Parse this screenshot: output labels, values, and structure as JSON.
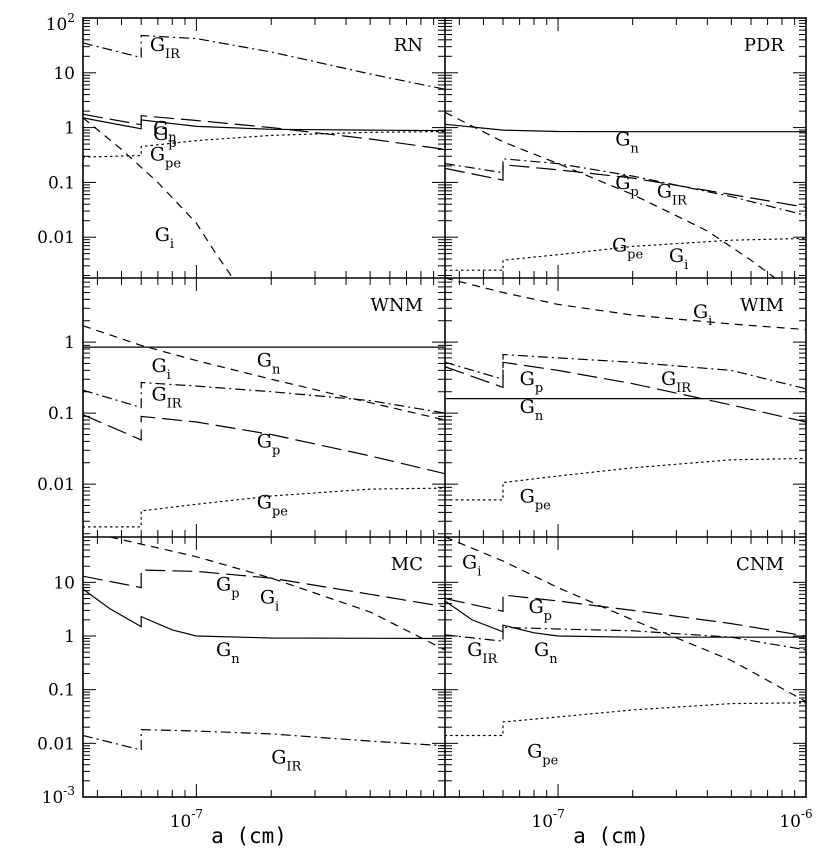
{
  "chart_data": {
    "type": "line",
    "xlabel": "a (cm)",
    "xscale": "log",
    "yscale": "log",
    "xlim": [
      3.5e-08,
      1e-06
    ],
    "ylim": [
      0.001,
      100
    ],
    "xtick_labels": [
      {
        "value": 1e-07,
        "mant": "10",
        "exp": "-7"
      },
      {
        "value": 1e-06,
        "mant": "10",
        "exp": "-6"
      }
    ],
    "ytick_labels": [
      {
        "value": 100,
        "mant": "10",
        "exp": "2"
      },
      {
        "value": 10,
        "text": "10"
      },
      {
        "value": 1,
        "text": "1"
      },
      {
        "value": 0.1,
        "text": "0.1"
      },
      {
        "value": 0.01,
        "text": "0.01"
      },
      {
        "value": 0.001,
        "mant": "10",
        "exp": "-3"
      }
    ],
    "line_styles": {
      "n": "solid",
      "p": "long-dash",
      "i": "short-dash",
      "pe": "dotted",
      "IR": "dash-dot"
    },
    "panels": [
      {
        "name": "RN",
        "col": 0,
        "row": 0,
        "ylim": [
          0.0018,
          100
        ],
        "series": [
          {
            "key": "IR",
            "x": [
              3.5e-08,
              6e-08,
              6e-08,
              1e-07,
              2e-07,
              5e-07,
              1e-06
            ],
            "y": [
              35,
              19,
              48,
              42,
              24,
              9.5,
              5
            ]
          },
          {
            "key": "p",
            "x": [
              3.5e-08,
              6e-08,
              6e-08,
              1e-07,
              2e-07,
              5e-07,
              1e-06
            ],
            "y": [
              1.75,
              1.13,
              1.65,
              1.35,
              1.0,
              0.62,
              0.4
            ]
          },
          {
            "key": "n",
            "x": [
              3.5e-08,
              6e-08,
              6e-08,
              1e-07,
              2e-07,
              5e-07,
              1e-06
            ],
            "y": [
              1.5,
              0.95,
              1.38,
              1.05,
              0.93,
              0.9,
              0.88
            ]
          },
          {
            "key": "pe",
            "x": [
              3.5e-08,
              6e-08,
              6e-08,
              1e-07,
              2e-07,
              5e-07,
              1e-06
            ],
            "y": [
              0.29,
              0.31,
              0.45,
              0.58,
              0.72,
              0.82,
              0.85
            ]
          },
          {
            "key": "i",
            "x": [
              3.5e-08,
              5e-08,
              7e-08,
              1e-07,
              1.2e-07,
              1.4e-07
            ],
            "y": [
              1.5,
              0.4,
              0.1,
              0.018,
              0.005,
              0.0018
            ]
          }
        ],
        "labels": [
          {
            "main": "G",
            "sub": "IR",
            "x": 6.5e-08,
            "y": 25
          },
          {
            "main": "G",
            "sub": "n",
            "x": 6.7e-08,
            "y": 0.75
          },
          {
            "main": "G",
            "sub": "p",
            "x": 6.7e-08,
            "y": 0.6
          },
          {
            "main": "G",
            "sub": "pe",
            "x": 6.5e-08,
            "y": 0.25
          },
          {
            "main": "G",
            "sub": "i",
            "x": 6.8e-08,
            "y": 0.0085
          }
        ]
      },
      {
        "name": "PDR",
        "col": 1,
        "row": 0,
        "ylim": [
          0.0018,
          100
        ],
        "series": [
          {
            "key": "n",
            "x": [
              3.5e-08,
              6e-08,
              1e-07,
              2e-07,
              5e-07,
              1e-06
            ],
            "y": [
              1.15,
              0.9,
              0.85,
              0.84,
              0.84,
              0.84
            ]
          },
          {
            "key": "p",
            "x": [
              3.5e-08,
              6e-08,
              6e-08,
              1e-07,
              2e-07,
              5e-07,
              1e-06
            ],
            "y": [
              0.18,
              0.11,
              0.21,
              0.17,
              0.12,
              0.06,
              0.035
            ]
          },
          {
            "key": "IR",
            "x": [
              3.5e-08,
              6e-08,
              6e-08,
              1e-07,
              2e-07,
              5e-07,
              1e-06
            ],
            "y": [
              0.22,
              0.15,
              0.27,
              0.22,
              0.13,
              0.055,
              0.025
            ]
          },
          {
            "key": "i",
            "x": [
              3.5e-08,
              6e-08,
              1e-07,
              2e-07,
              4e-07,
              6e-07,
              7.5e-07
            ],
            "y": [
              1.9,
              0.55,
              0.22,
              0.06,
              0.013,
              0.0038,
              0.0018
            ]
          },
          {
            "key": "pe",
            "x": [
              3.5e-08,
              6e-08,
              6e-08,
              1e-07,
              2e-07,
              5e-07,
              1e-06
            ],
            "y": [
              0.0025,
              0.0025,
              0.0038,
              0.0048,
              0.0068,
              0.0088,
              0.0095
            ]
          }
        ],
        "labels": [
          {
            "main": "G",
            "sub": "n",
            "x": 1.7e-07,
            "y": 0.47
          },
          {
            "main": "G",
            "sub": "p",
            "x": 1.7e-07,
            "y": 0.075
          },
          {
            "main": "G",
            "sub": "IR",
            "x": 2.5e-07,
            "y": 0.053
          },
          {
            "main": "G",
            "sub": "pe",
            "x": 1.65e-07,
            "y": 0.0055
          },
          {
            "main": "G",
            "sub": "i",
            "x": 2.8e-07,
            "y": 0.0035
          }
        ]
      },
      {
        "name": "WNM",
        "col": 0,
        "row": 1,
        "ylim": [
          0.0018,
          8
        ],
        "series": [
          {
            "key": "n",
            "x": [
              3.5e-08,
              1e-07,
              1e-06
            ],
            "y": [
              0.85,
              0.85,
              0.85
            ]
          },
          {
            "key": "i",
            "x": [
              3.5e-08,
              6e-08,
              1e-07,
              2e-07,
              5e-07,
              1e-06
            ],
            "y": [
              1.7,
              0.9,
              0.55,
              0.3,
              0.14,
              0.08
            ]
          },
          {
            "key": "IR",
            "x": [
              3.5e-08,
              6e-08,
              6e-08,
              1e-07,
              2e-07,
              5e-07,
              1e-06
            ],
            "y": [
              0.21,
              0.12,
              0.27,
              0.24,
              0.2,
              0.15,
              0.1
            ]
          },
          {
            "key": "p",
            "x": [
              3.5e-08,
              6e-08,
              6e-08,
              1e-07,
              2e-07,
              5e-07,
              1e-06
            ],
            "y": [
              0.095,
              0.042,
              0.09,
              0.075,
              0.05,
              0.025,
              0.014
            ]
          },
          {
            "key": "pe",
            "x": [
              3.5e-08,
              6e-08,
              6e-08,
              1e-07,
              2e-07,
              5e-07,
              1e-06
            ],
            "y": [
              0.0025,
              0.0025,
              0.0042,
              0.0052,
              0.0068,
              0.0085,
              0.0088
            ]
          }
        ],
        "labels": [
          {
            "main": "G",
            "sub": "n",
            "x": 1.75e-07,
            "y": 0.45
          },
          {
            "main": "G",
            "sub": "i",
            "x": 6.6e-08,
            "y": 0.38
          },
          {
            "main": "G",
            "sub": "IR",
            "x": 6.6e-08,
            "y": 0.15
          },
          {
            "main": "G",
            "sub": "p",
            "x": 1.75e-07,
            "y": 0.033
          },
          {
            "main": "G",
            "sub": "pe",
            "x": 1.75e-07,
            "y": 0.0045
          }
        ]
      },
      {
        "name": "WIM",
        "col": 1,
        "row": 1,
        "ylim": [
          0.0018,
          8
        ],
        "series": [
          {
            "key": "i",
            "x": [
              3.5e-08,
              6e-08,
              1e-07,
              2e-07,
              5e-07,
              1e-06
            ],
            "y": [
              8,
              5,
              3.4,
              2.4,
              1.8,
              1.5
            ]
          },
          {
            "key": "IR",
            "x": [
              3.5e-08,
              6e-08,
              6e-08,
              1e-07,
              2e-07,
              5e-07,
              1e-06
            ],
            "y": [
              0.52,
              0.3,
              0.67,
              0.6,
              0.52,
              0.4,
              0.22
            ]
          },
          {
            "key": "p",
            "x": [
              3.5e-08,
              6e-08,
              6e-08,
              1e-07,
              2e-07,
              5e-07,
              1e-06
            ],
            "y": [
              0.45,
              0.23,
              0.52,
              0.4,
              0.26,
              0.13,
              0.075
            ]
          },
          {
            "key": "n",
            "x": [
              3.5e-08,
              1e-07,
              1e-06
            ],
            "y": [
              0.16,
              0.16,
              0.16
            ]
          },
          {
            "key": "pe",
            "x": [
              3.5e-08,
              6e-08,
              6e-08,
              1e-07,
              2e-07,
              5e-07,
              1e-06
            ],
            "y": [
              0.006,
              0.006,
              0.0105,
              0.013,
              0.017,
              0.022,
              0.023
            ]
          }
        ],
        "labels": [
          {
            "main": "G",
            "sub": "i",
            "x": 3.5e-07,
            "y": 2.2
          },
          {
            "main": "G",
            "sub": "p",
            "x": 7e-08,
            "y": 0.25
          },
          {
            "main": "G",
            "sub": "IR",
            "x": 2.6e-07,
            "y": 0.25
          },
          {
            "main": "G",
            "sub": "n",
            "x": 7e-08,
            "y": 0.1
          },
          {
            "main": "G",
            "sub": "pe",
            "x": 7e-08,
            "y": 0.0055
          }
        ]
      },
      {
        "name": "MC",
        "col": 0,
        "row": 2,
        "ylim": [
          0.001,
          70
        ],
        "series": [
          {
            "key": "i",
            "x": [
              4.5e-08,
              1e-07,
              2e-07,
              5e-07,
              1e-06
            ],
            "y": [
              70,
              30,
              12,
              2.8,
              0.55
            ]
          },
          {
            "key": "p",
            "x": [
              3.5e-08,
              6e-08,
              6e-08,
              1e-07,
              2e-07,
              5e-07,
              1e-06
            ],
            "y": [
              13,
              8,
              17,
              16,
              12,
              6,
              3.5
            ]
          },
          {
            "key": "n",
            "x": [
              3.5e-08,
              4.5e-08,
              6e-08,
              6e-08,
              8e-08,
              1e-07,
              2e-07,
              1e-06
            ],
            "y": [
              7.5,
              3.2,
              1.5,
              2.3,
              1.3,
              1.0,
              0.92,
              0.9
            ]
          },
          {
            "key": "IR",
            "x": [
              3.5e-08,
              6e-08,
              6e-08,
              1e-07,
              2e-07,
              5e-07,
              1e-06
            ],
            "y": [
              0.014,
              0.0075,
              0.018,
              0.017,
              0.015,
              0.011,
              0.009
            ]
          }
        ],
        "labels": [
          {
            "main": "G",
            "sub": "p",
            "x": 1.2e-07,
            "y": 7
          },
          {
            "main": "G",
            "sub": "i",
            "x": 1.8e-07,
            "y": 4
          },
          {
            "main": "G",
            "sub": "n",
            "x": 1.2e-07,
            "y": 0.42
          },
          {
            "main": "G",
            "sub": "IR",
            "x": 2e-07,
            "y": 0.0042
          }
        ]
      },
      {
        "name": "CNM",
        "col": 1,
        "row": 2,
        "ylim": [
          0.001,
          70
        ],
        "series": [
          {
            "key": "i",
            "x": [
              3.5e-08,
              6e-08,
              1e-07,
              2e-07,
              5e-07,
              1e-06
            ],
            "y": [
              70,
              25,
              8,
              2,
              0.35,
              0.06
            ]
          },
          {
            "key": "p",
            "x": [
              3.5e-08,
              6e-08,
              6e-08,
              1e-07,
              2e-07,
              5e-07,
              1e-06
            ],
            "y": [
              5,
              2.9,
              5.8,
              4.5,
              3,
              1.7,
              1.0
            ]
          },
          {
            "key": "n",
            "x": [
              3.5e-08,
              4.5e-08,
              6e-08,
              6e-08,
              8e-08,
              1e-07,
              2e-07,
              1e-06
            ],
            "y": [
              4.5,
              2,
              1.2,
              1.6,
              1.15,
              1.0,
              0.95,
              0.95
            ]
          },
          {
            "key": "IR",
            "x": [
              3.5e-08,
              6e-08,
              6e-08,
              1e-07,
              2e-07,
              5e-07,
              1e-06
            ],
            "y": [
              1.05,
              0.8,
              1.45,
              1.35,
              1.25,
              0.95,
              0.55
            ]
          },
          {
            "key": "pe",
            "x": [
              3.5e-08,
              6e-08,
              6e-08,
              1e-07,
              2e-07,
              5e-07,
              1e-06
            ],
            "y": [
              0.014,
              0.014,
              0.025,
              0.031,
              0.042,
              0.055,
              0.057
            ]
          }
        ],
        "labels": [
          {
            "main": "G",
            "sub": "i",
            "x": 4.1e-08,
            "y": 18
          },
          {
            "main": "G",
            "sub": "p",
            "x": 7.6e-08,
            "y": 2.7
          },
          {
            "main": "G",
            "sub": "IR",
            "x": 4.3e-08,
            "y": 0.42
          },
          {
            "main": "G",
            "sub": "n",
            "x": 8e-08,
            "y": 0.42
          },
          {
            "main": "G",
            "sub": "pe",
            "x": 7.5e-08,
            "y": 0.0055
          }
        ]
      }
    ]
  }
}
